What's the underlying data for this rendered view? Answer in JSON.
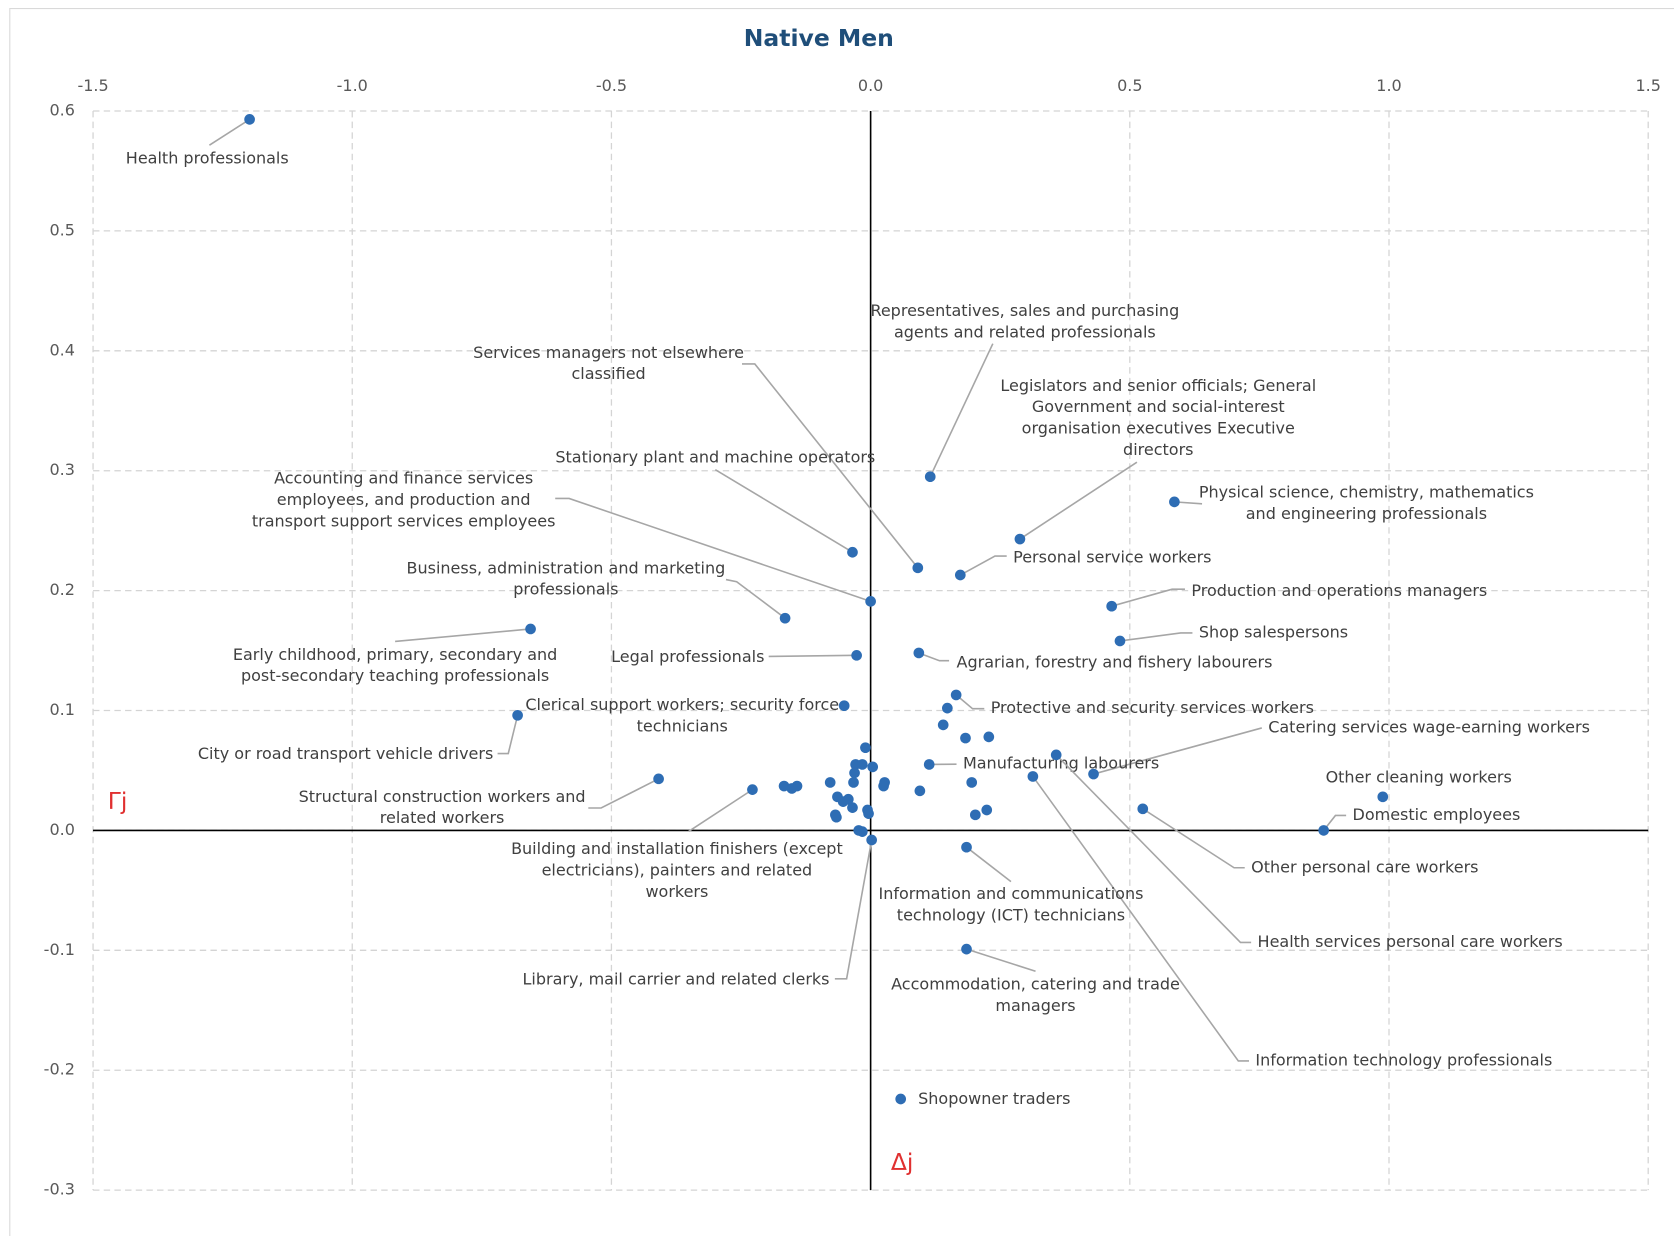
{
  "chart_data": {
    "type": "scatter",
    "title": "Native Men",
    "x_label": "Δj",
    "y_label": "Γj",
    "color": "#2e6db4",
    "grid": true,
    "xlim": [
      -1.5,
      1.5
    ],
    "xticks": [
      -1.5,
      {
        "value": -1,
        "label": "-1.0"
      },
      -0.5,
      {
        "value": 0,
        "label": "0.0"
      },
      0.5,
      {
        "value": 1,
        "label": "1.0"
      },
      1.5
    ],
    "ylim": [
      -0.3,
      0.6
    ],
    "yticks": [
      -0.3,
      -0.2,
      -0.1,
      {
        "value": 0,
        "label": "0.0"
      },
      0.1,
      0.2,
      0.3,
      0.4,
      0.5,
      0.6
    ],
    "x": [
      -1.198,
      0.115,
      0.091,
      0.288,
      0.586,
      -0.035,
      0.0,
      0.173,
      -0.165,
      0.465,
      -0.656,
      -0.027,
      0.481,
      0.093,
      -0.051,
      0.165,
      -0.681,
      0.43,
      0.113,
      0.988,
      0.874,
      -0.409,
      -0.228,
      0.525,
      0.358,
      0.313,
      0.002,
      0.185,
      0.185,
      0.058,
      -0.01,
      0.14,
      0.148,
      0.183,
      0.228,
      -0.029,
      -0.016,
      0.004,
      -0.031,
      0.027,
      0.025,
      -0.078,
      -0.167,
      -0.142,
      -0.152,
      -0.033,
      -0.064,
      -0.043,
      -0.053,
      -0.035,
      -0.068,
      -0.066,
      -0.006,
      -0.004,
      -0.023,
      -0.016,
      0.095,
      0.195,
      0.224,
      0.202
    ],
    "y": [
      0.593,
      0.295,
      0.219,
      0.243,
      0.274,
      0.232,
      0.191,
      0.213,
      0.177,
      0.187,
      0.168,
      0.146,
      0.158,
      0.148,
      0.104,
      0.113,
      0.096,
      0.047,
      0.055,
      0.028,
      0.0,
      0.043,
      0.034,
      0.018,
      0.063,
      0.045,
      -0.008,
      -0.014,
      -0.099,
      -0.224,
      0.069,
      0.088,
      0.102,
      0.077,
      0.078,
      0.055,
      0.055,
      0.053,
      0.048,
      0.04,
      0.037,
      0.04,
      0.037,
      0.037,
      0.035,
      0.04,
      0.028,
      0.026,
      0.024,
      0.019,
      0.013,
      0.011,
      0.017,
      0.014,
      0.0,
      -0.001,
      0.033,
      0.04,
      0.017,
      0.013
    ],
    "labels": [
      [
        "Health professionals"
      ],
      [
        "Representatives, sales and purchasing",
        "agents and related professionals"
      ],
      [
        "Services managers not elsewhere",
        "classified"
      ],
      [
        "Legislators and senior officials; General",
        "Government and social-interest",
        "organisation executives Executive",
        "directors"
      ],
      [
        "Physical science, chemistry, mathematics",
        "and engineering professionals"
      ],
      [
        "Stationary plant and machine operators"
      ],
      [
        "Accounting and finance services",
        "employees, and production and",
        "transport support services employees"
      ],
      [
        "Personal service workers"
      ],
      [
        "Business, administration and marketing",
        "professionals"
      ],
      [
        "Production and operations managers"
      ],
      [
        "Early childhood, primary, secondary and",
        "post-secondary teaching professionals"
      ],
      [
        "Legal professionals"
      ],
      [
        "Shop salespersons"
      ],
      [
        "Agrarian, forestry and fishery labourers"
      ],
      [
        "Clerical support workers;  security force",
        "technicians"
      ],
      [
        "Protective and security services workers"
      ],
      [
        "City or road transport vehicle drivers"
      ],
      [
        "Catering services wage-earning workers"
      ],
      [
        "Manufacturing labourers"
      ],
      [
        "Other cleaning workers"
      ],
      [
        "Domestic employees"
      ],
      [
        "Structural construction workers and",
        "related workers"
      ],
      [
        "Building and installation finishers (except",
        "electricians), painters and related",
        "workers"
      ],
      [
        "Other personal care workers"
      ],
      [
        "Health services personal care workers"
      ],
      [
        "Information technology professionals"
      ],
      [
        "Library, mail carrier and related clerks"
      ],
      [
        "Information and communications",
        "technology (ICT) technicians"
      ],
      [
        "Accommodation, catering and trade",
        "managers"
      ],
      [
        "Shopowner traders"
      ],
      null,
      null,
      null,
      null,
      null,
      null,
      null,
      null,
      null,
      null,
      null,
      null,
      null,
      null,
      null,
      null,
      null,
      null,
      null,
      null,
      null,
      null,
      null,
      null,
      null,
      null,
      null,
      null,
      null,
      null
    ]
  }
}
